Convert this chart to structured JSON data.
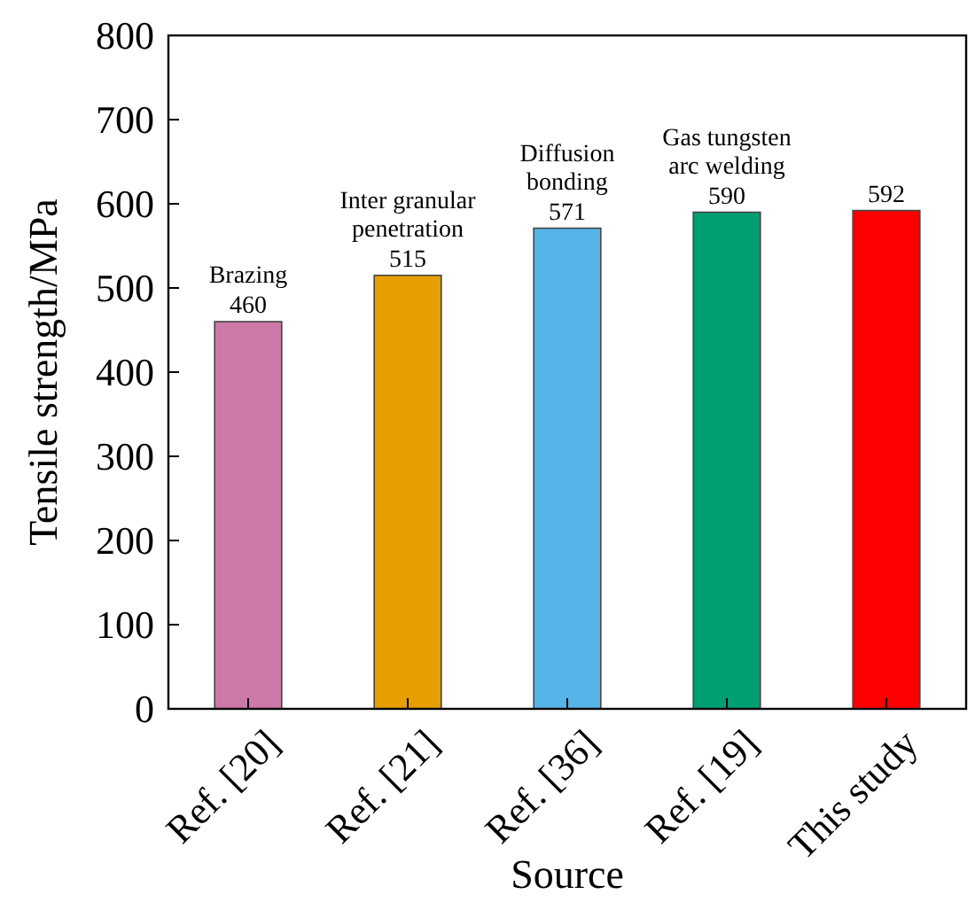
{
  "chart_data": {
    "type": "bar",
    "xlabel": "Source",
    "ylabel": "Tensile strength/MPa",
    "categories": [
      "Ref. [20]",
      "Ref. [21]",
      "Ref. [36]",
      "Ref. [19]",
      "This study"
    ],
    "values": [
      460,
      515,
      571,
      590,
      592
    ],
    "colors": [
      "#cc79a7",
      "#e69f00",
      "#56b4e9",
      "#009e73",
      "#ff0000"
    ],
    "data_labels": true,
    "ylim": [
      0,
      800
    ],
    "yticks": [
      0,
      100,
      200,
      300,
      400,
      500,
      600,
      700,
      800
    ],
    "annotations": [
      {
        "text": "Brazing",
        "x": "Ref. [20]",
        "y": 460
      },
      {
        "text": "Inter granular\npenetration",
        "x": "Ref. [21]",
        "y": 515
      },
      {
        "text": "Diffusion\nbonding",
        "x": "Ref. [36]",
        "y": 571
      },
      {
        "text": "Gas tungsten\narc welding",
        "x": "Ref. [19]",
        "y": 590
      }
    ],
    "grid": false
  }
}
